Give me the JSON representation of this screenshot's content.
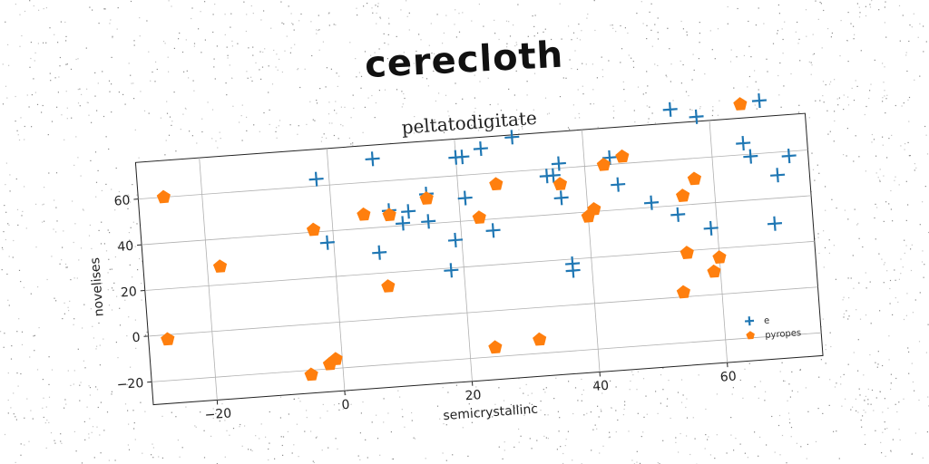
{
  "heading": "cerecloth",
  "chart_data": {
    "type": "scatter",
    "title": "peltatodigitate",
    "xlabel": "semicrystallinc",
    "ylabel": "novelises",
    "xlim": [
      -30,
      75
    ],
    "ylim": [
      -30,
      76
    ],
    "xticks": [
      -20,
      0,
      20,
      40,
      60
    ],
    "yticks": [
      -20,
      0,
      20,
      40,
      60
    ],
    "grid": true,
    "legend_position": "lower-right",
    "series": [
      {
        "name": "e",
        "marker": "plus",
        "color": "#1f77b4",
        "points": [
          [
            -2,
            63
          ],
          [
            -1,
            35
          ],
          [
            7,
            70
          ],
          [
            7,
            29
          ],
          [
            9,
            47
          ],
          [
            11,
            41
          ],
          [
            12,
            46
          ],
          [
            15,
            53
          ],
          [
            15,
            41
          ],
          [
            18,
            19
          ],
          [
            19,
            32
          ],
          [
            20,
            68
          ],
          [
            21,
            68
          ],
          [
            21,
            50
          ],
          [
            24,
            71
          ],
          [
            25,
            35
          ],
          [
            29,
            75
          ],
          [
            34,
            57
          ],
          [
            35,
            57
          ],
          [
            36,
            62
          ],
          [
            36,
            47
          ],
          [
            37,
            15
          ],
          [
            37,
            18
          ],
          [
            44,
            63
          ],
          [
            45,
            51
          ],
          [
            50,
            42
          ],
          [
            54,
            36
          ],
          [
            54,
            82
          ],
          [
            58,
            78
          ],
          [
            59,
            29
          ],
          [
            65,
            65
          ],
          [
            66,
            59
          ],
          [
            68,
            83
          ],
          [
            69,
            29
          ],
          [
            70,
            50
          ],
          [
            72,
            58
          ]
        ]
      },
      {
        "name": "pyropes",
        "marker": "pentagon",
        "color": "#ff7f0e",
        "points": [
          [
            -26,
            60
          ],
          [
            -27,
            -2
          ],
          [
            -18,
            28
          ],
          [
            -3,
            41
          ],
          [
            -5,
            -22
          ],
          [
            -2,
            -18
          ],
          [
            -1,
            -16
          ],
          [
            5,
            46
          ],
          [
            8,
            14
          ],
          [
            9,
            45
          ],
          [
            15,
            51
          ],
          [
            23,
            41
          ],
          [
            24,
            -16
          ],
          [
            26,
            55
          ],
          [
            31,
            -14
          ],
          [
            36,
            53
          ],
          [
            40,
            38
          ],
          [
            41,
            41
          ],
          [
            43,
            60
          ],
          [
            46,
            63
          ],
          [
            54,
            2
          ],
          [
            55,
            44
          ],
          [
            55,
            19
          ],
          [
            57,
            51
          ],
          [
            59,
            10
          ],
          [
            60,
            16
          ],
          [
            65,
            82
          ]
        ]
      }
    ]
  }
}
